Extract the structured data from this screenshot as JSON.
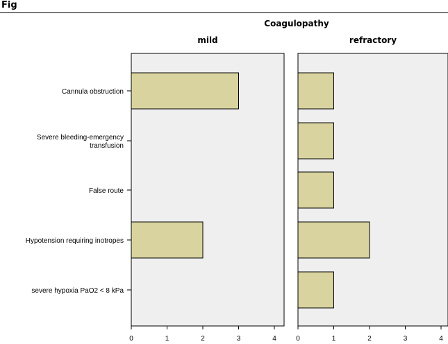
{
  "page_label": "Fig",
  "chart_data": {
    "type": "bar",
    "orientation": "horizontal",
    "group_title": "Coagulopathy",
    "categories": [
      [
        "Cannula obstruction"
      ],
      [
        "Severe bleeding-emergency",
        "transfusion"
      ],
      [
        "False route"
      ],
      [
        "Hypotension requiring inotropes"
      ],
      [
        "severe hypoxia PaO2 < 8 kPa"
      ]
    ],
    "panels": [
      {
        "name": "mild",
        "values": [
          3,
          0,
          0,
          2,
          0
        ]
      },
      {
        "name": "refractory",
        "values": [
          1,
          1,
          1,
          2,
          1
        ]
      }
    ],
    "x_ticks": [
      0,
      1,
      2,
      3,
      4
    ],
    "xlim": [
      0,
      4.3
    ],
    "xlabel": "",
    "ylabel": "",
    "grid": false,
    "colors": {
      "bar_fill": "#d9d3a0",
      "bar_stroke": "#000000",
      "panel_bg": "#efefef",
      "axis": "#000000"
    }
  }
}
